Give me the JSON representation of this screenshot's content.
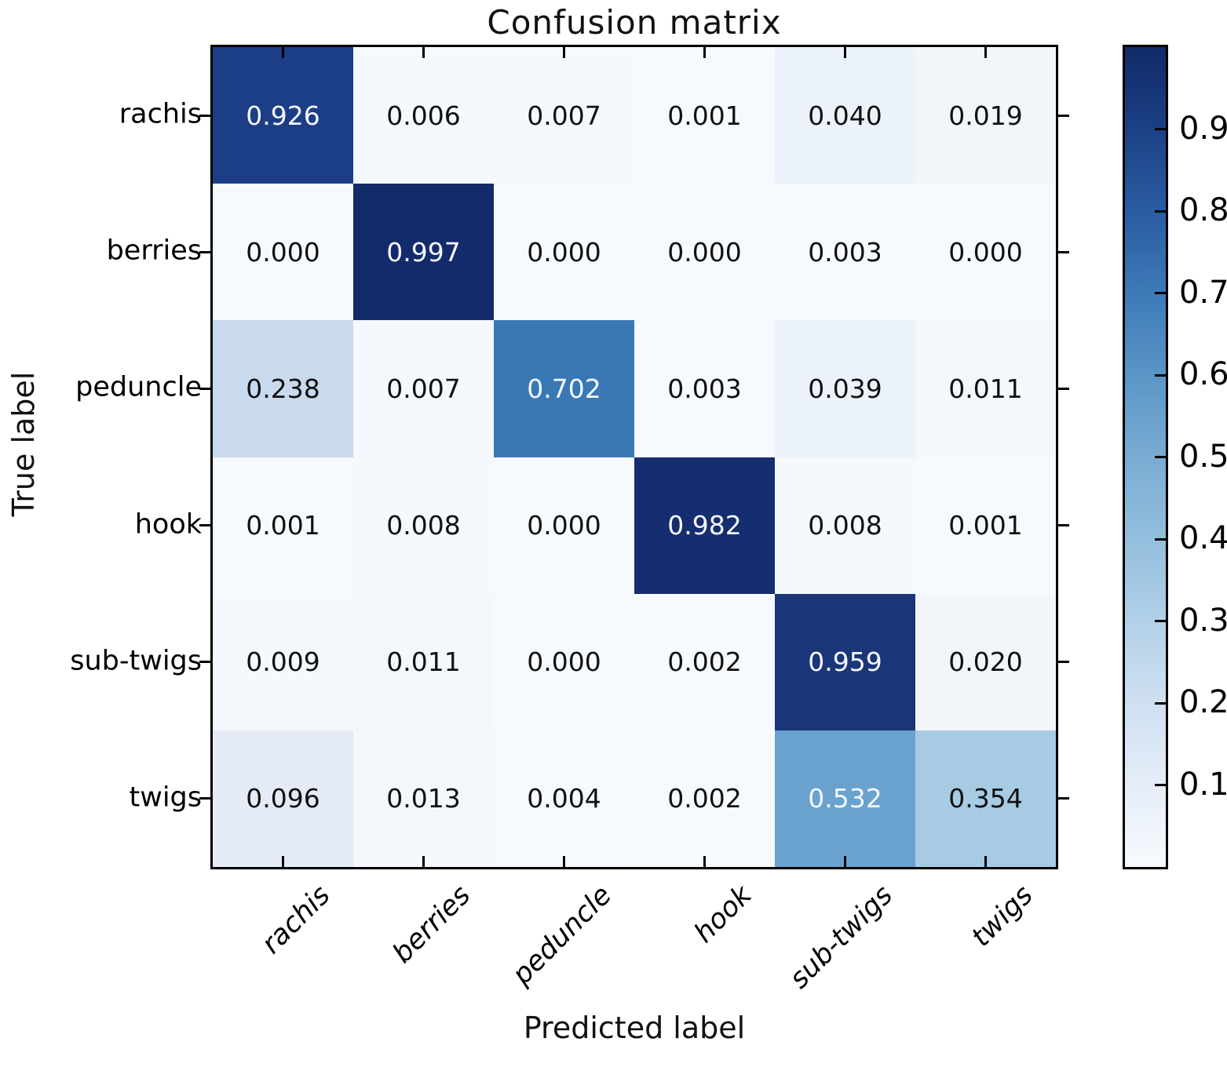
{
  "chart_data": {
    "type": "heatmap",
    "title": "Confusion matrix",
    "xlabel": "Predicted label",
    "ylabel": "True label",
    "x_categories": [
      "rachis",
      "berries",
      "peduncle",
      "hook",
      "sub-twigs",
      "twigs"
    ],
    "y_categories": [
      "rachis",
      "berries",
      "peduncle",
      "hook",
      "sub-twigs",
      "twigs"
    ],
    "values": [
      [
        "0.926",
        "0.006",
        "0.007",
        "0.001",
        "0.040",
        "0.019"
      ],
      [
        "0.000",
        "0.997",
        "0.000",
        "0.000",
        "0.003",
        "0.000"
      ],
      [
        "0.238",
        "0.007",
        "0.702",
        "0.003",
        "0.039",
        "0.011"
      ],
      [
        "0.001",
        "0.008",
        "0.000",
        "0.982",
        "0.008",
        "0.001"
      ],
      [
        "0.009",
        "0.011",
        "0.000",
        "0.002",
        "0.959",
        "0.020"
      ],
      [
        "0.096",
        "0.013",
        "0.004",
        "0.002",
        "0.532",
        "0.354"
      ]
    ],
    "cell_colors": [
      [
        "#1c3e87",
        "#f5f9fd",
        "#f5f9fd",
        "#f7fafd",
        "#ecf2f9",
        "#f2f6fb"
      ],
      [
        "#f7fafd",
        "#132a6b",
        "#f7fafd",
        "#f7fafd",
        "#f6f9fd",
        "#f7fafd"
      ],
      [
        "#c9daee",
        "#f5f9fd",
        "#3a78b5",
        "#f6f9fd",
        "#ecf2f9",
        "#f4f8fc"
      ],
      [
        "#f7fafd",
        "#f5f9fd",
        "#f7fafd",
        "#162d6f",
        "#f5f9fd",
        "#f7fafd"
      ],
      [
        "#f5f9fd",
        "#f4f8fc",
        "#f7fafd",
        "#f7fafd",
        "#1a3578",
        "#f2f6fb"
      ],
      [
        "#e4ebf6",
        "#f4f8fc",
        "#f6f9fd",
        "#f7fafd",
        "#69a2ce",
        "#a6cbe3"
      ]
    ],
    "white_text_threshold": 0.5,
    "value_range": [
      0,
      1
    ],
    "grid": false,
    "colorbar": {
      "position": "right",
      "tick_labels": [
        "0.9",
        "0.8",
        "0.7",
        "0.6",
        "0.5",
        "0.4",
        "0.3",
        "0.2",
        "0.1"
      ],
      "tick_values": [
        0.9,
        0.8,
        0.7,
        0.6,
        0.5,
        0.4,
        0.3,
        0.2,
        0.1
      ],
      "range": [
        0,
        1
      ],
      "gradient": [
        "#f7fafe",
        "#e5edf8",
        "#cfe0f1",
        "#b2d0e8",
        "#93bedd",
        "#79acd3",
        "#5a95c6",
        "#3d79b7",
        "#2a5ca2",
        "#1b4085",
        "#122a68"
      ]
    }
  }
}
